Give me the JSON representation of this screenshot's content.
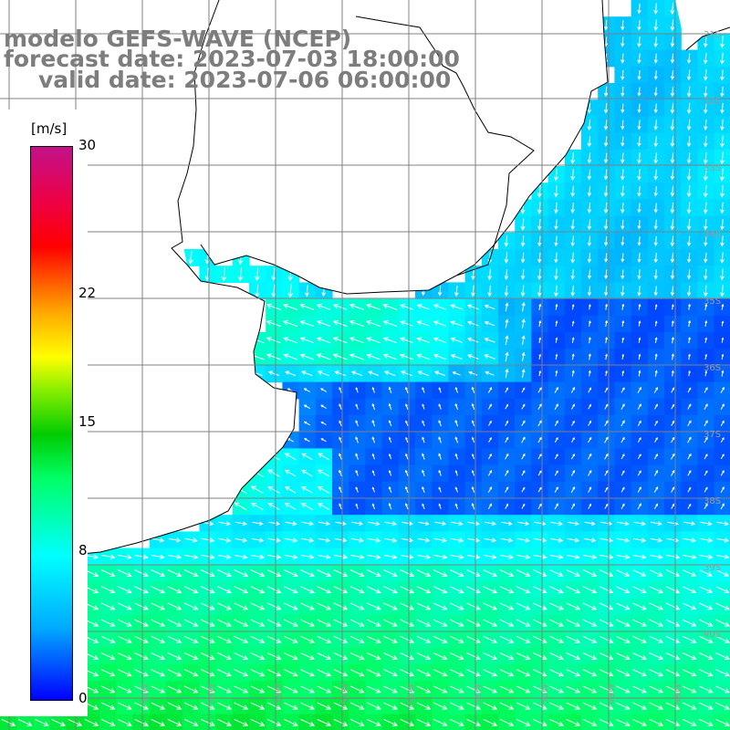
{
  "title": {
    "line1": "modelo GEFS-WAVE (NCEP)",
    "line2": "forecast date: 2023-07-03 18:00:00",
    "line3": "valid date: 2023-07-06 06:00:00"
  },
  "colorbar": {
    "unit": "[m/s]",
    "ticks": [
      {
        "label": "30",
        "value": 30
      },
      {
        "label": "22",
        "value": 22
      },
      {
        "label": "15",
        "value": 15
      },
      {
        "label": "8",
        "value": 8
      },
      {
        "label": "0",
        "value": 0
      }
    ],
    "min": 0,
    "max": 30
  },
  "map": {
    "lat_labels": [
      "31S",
      "32S",
      "33S",
      "34S",
      "35S",
      "36S",
      "37S",
      "38S",
      "39S",
      "40S"
    ],
    "lon_labels": [
      "58W",
      "57W",
      "56W",
      "55W",
      "54W",
      "53W",
      "52W",
      "51W",
      "50W",
      "49W",
      "48W"
    ],
    "land_color": "#ffffff",
    "grid_color": "#808080"
  }
}
